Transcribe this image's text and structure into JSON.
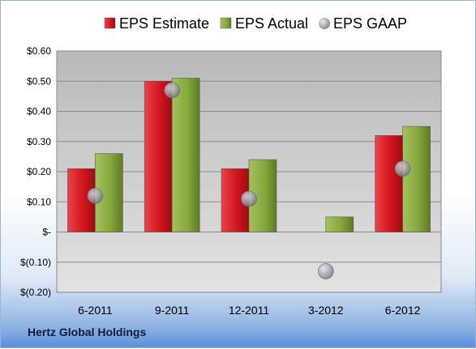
{
  "company": "Hertz Global Holdings",
  "chart_data": {
    "type": "bar",
    "categories": [
      "6-2011",
      "9-2011",
      "12-2011",
      "3-2012",
      "6-2012"
    ],
    "series": [
      {
        "name": "EPS Estimate",
        "kind": "bar",
        "color": "#d9232a",
        "values": [
          0.21,
          0.5,
          0.21,
          null,
          0.32
        ]
      },
      {
        "name": "EPS Actual",
        "kind": "bar",
        "color": "#8fb048",
        "values": [
          0.26,
          0.51,
          0.24,
          0.05,
          0.35
        ]
      },
      {
        "name": "EPS GAAP",
        "kind": "marker",
        "color": "#9aa0aa",
        "values": [
          0.12,
          0.47,
          0.11,
          -0.13,
          0.21
        ]
      }
    ],
    "y_ticks": [
      {
        "value": 0.6,
        "label": "$0.60"
      },
      {
        "value": 0.5,
        "label": "$0.50"
      },
      {
        "value": 0.4,
        "label": "$0.40"
      },
      {
        "value": 0.3,
        "label": "$0.30"
      },
      {
        "value": 0.2,
        "label": "$0.20"
      },
      {
        "value": 0.1,
        "label": "$0.10"
      },
      {
        "value": 0.0,
        "label": "$-"
      },
      {
        "value": -0.1,
        "label": "$(0.10)"
      },
      {
        "value": -0.2,
        "label": "$(0.20)"
      }
    ],
    "ylim": [
      -0.2,
      0.6
    ],
    "grid": true,
    "legend_position": "top"
  }
}
